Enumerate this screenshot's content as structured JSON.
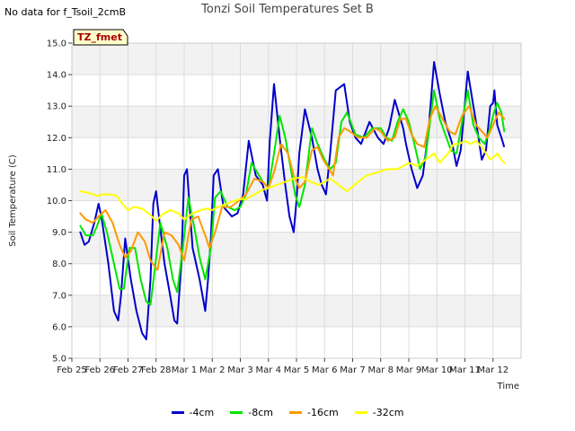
{
  "header": {
    "no_data_text": "No data for f_Tsoil_2cmB",
    "title": "Tonzi Soil Temperatures Set B"
  },
  "chart_data": {
    "type": "line",
    "title": "Tonzi Soil Temperatures Set B",
    "xlabel": "Time",
    "ylabel": "Soil Temperature (C)",
    "ylim": [
      5.0,
      15.0
    ],
    "xlim_days": [
      0,
      16
    ],
    "x_ticks": [
      "Feb 25",
      "Feb 26",
      "Feb 27",
      "Feb 28",
      "Mar 1",
      "Mar 2",
      "Mar 3",
      "Mar 4",
      "Mar 5",
      "Mar 6",
      "Mar 7",
      "Mar 8",
      "Mar 9",
      "Mar 10",
      "Mar 11",
      "Mar 12"
    ],
    "y_ticks": [
      "5.0",
      "6.0",
      "7.0",
      "8.0",
      "9.0",
      "10.0",
      "11.0",
      "12.0",
      "13.0",
      "14.0",
      "15.0"
    ],
    "annotation": "TZ_fmet",
    "grid": true,
    "legend_position": "bottom",
    "series": [
      {
        "name": "-4cm",
        "color": "#0000cc",
        "x": [
          0.3,
          0.45,
          0.6,
          0.8,
          0.95,
          1.05,
          1.3,
          1.5,
          1.65,
          1.75,
          1.9,
          2.1,
          2.3,
          2.5,
          2.65,
          2.8,
          2.9,
          3.0,
          3.1,
          3.3,
          3.5,
          3.65,
          3.75,
          3.9,
          4.0,
          4.1,
          4.3,
          4.55,
          4.75,
          4.85,
          4.95,
          5.05,
          5.2,
          5.4,
          5.7,
          5.9,
          6.0,
          6.1,
          6.3,
          6.55,
          6.8,
          6.95,
          7.05,
          7.2,
          7.4,
          7.6,
          7.75,
          7.9,
          8.0,
          8.1,
          8.3,
          8.55,
          8.75,
          8.9,
          9.05,
          9.2,
          9.4,
          9.7,
          9.9,
          10.1,
          10.3,
          10.6,
          10.9,
          11.1,
          11.3,
          11.5,
          11.8,
          11.9,
          12.1,
          12.3,
          12.5,
          12.7,
          12.9,
          13.1,
          13.3,
          13.55,
          13.7,
          13.85,
          14.1,
          14.3,
          14.45,
          14.6,
          14.75
        ],
        "y": [
          9.0,
          8.6,
          8.7,
          9.3,
          9.9,
          9.5,
          8.0,
          6.5,
          6.2,
          7.0,
          8.8,
          7.5,
          6.5,
          5.8,
          5.6,
          7.5,
          9.9,
          10.3,
          9.5,
          8.0,
          7.0,
          6.2,
          6.1,
          8.0,
          10.8,
          11.0,
          8.5,
          7.5,
          6.5,
          7.5,
          8.8,
          10.8,
          11.0,
          9.8,
          9.5,
          9.6,
          9.9,
          10.2,
          11.9,
          10.8,
          10.5,
          10.0,
          11.9,
          13.7,
          12.0,
          10.5,
          9.5,
          9.0,
          10.0,
          11.5,
          12.9,
          12.0,
          11.0,
          10.5,
          10.2,
          11.5,
          13.5,
          13.7,
          12.5,
          12.0,
          11.8,
          12.5,
          12.0,
          11.8,
          12.3,
          13.2,
          12.3,
          11.8,
          11.0,
          10.4,
          10.8,
          12.2,
          14.4,
          13.4,
          12.5,
          11.8,
          11.1,
          11.6,
          14.1,
          13.0,
          12.2,
          11.3,
          11.6
        ],
        "x2": [
          14.75,
          14.9,
          15.0,
          15.05,
          15.15,
          15.3,
          15.4
        ],
        "y2": [
          11.6,
          13.0,
          13.1,
          13.5,
          12.4,
          12.0,
          11.7
        ]
      },
      {
        "name": "-8cm",
        "color": "#00e600",
        "x": [
          0.3,
          0.5,
          0.75,
          0.9,
          1.05,
          1.25,
          1.5,
          1.7,
          1.85,
          2.05,
          2.25,
          2.45,
          2.65,
          2.8,
          2.95,
          3.15,
          3.4,
          3.6,
          3.75,
          3.95,
          4.15,
          4.35,
          4.55,
          4.75,
          4.95,
          5.1,
          5.3,
          5.55,
          5.8,
          6.0,
          6.2,
          6.4,
          6.6,
          6.8,
          7.0,
          7.2,
          7.4,
          7.6,
          7.8,
          7.95,
          8.1,
          8.3,
          8.55,
          8.75,
          9.0,
          9.2,
          9.4,
          9.6,
          9.8,
          10.1,
          10.4,
          10.7,
          11.0,
          11.2,
          11.4,
          11.6,
          11.8,
          12.0,
          12.2,
          12.4,
          12.6,
          12.9,
          13.1,
          13.3,
          13.5,
          13.7,
          13.9,
          14.1,
          14.3,
          14.5,
          14.7,
          14.9,
          15.0,
          15.15,
          15.3,
          15.4
        ],
        "y": [
          9.2,
          8.9,
          8.9,
          9.2,
          9.6,
          9.0,
          8.0,
          7.2,
          7.2,
          8.5,
          8.5,
          7.5,
          6.8,
          6.7,
          7.8,
          9.3,
          8.5,
          7.5,
          7.1,
          8.5,
          10.1,
          9.2,
          8.2,
          7.5,
          8.5,
          10.1,
          10.3,
          9.8,
          9.7,
          9.8,
          10.2,
          11.2,
          10.9,
          10.6,
          10.4,
          11.5,
          12.7,
          12.0,
          11.0,
          10.2,
          9.8,
          10.5,
          12.3,
          11.8,
          11.3,
          11.0,
          11.2,
          12.5,
          12.8,
          12.1,
          12.0,
          12.3,
          12.3,
          12.0,
          11.9,
          12.5,
          12.9,
          12.5,
          11.8,
          11.0,
          11.4,
          13.5,
          12.6,
          12.1,
          11.6,
          11.5,
          12.5,
          13.5,
          12.4,
          12.0,
          11.8,
          12.3,
          12.7,
          13.1,
          12.8,
          12.2
        ]
      },
      {
        "name": "-16cm",
        "color": "#ff9900",
        "x": [
          0.3,
          0.5,
          0.75,
          0.95,
          1.2,
          1.45,
          1.7,
          1.9,
          2.1,
          2.35,
          2.6,
          2.8,
          3.05,
          3.3,
          3.55,
          3.8,
          4.0,
          4.25,
          4.5,
          4.75,
          4.9,
          5.1,
          5.35,
          5.65,
          5.95,
          6.2,
          6.5,
          6.8,
          7.0,
          7.2,
          7.45,
          7.7,
          7.9,
          8.1,
          8.3,
          8.55,
          8.75,
          8.95,
          9.1,
          9.3,
          9.5,
          9.7,
          9.9,
          10.2,
          10.5,
          10.8,
          11.0,
          11.25,
          11.5,
          11.7,
          11.9,
          12.1,
          12.3,
          12.55,
          12.75,
          12.95,
          13.2,
          13.45,
          13.65,
          13.9,
          14.15,
          14.4,
          14.6,
          14.8,
          15.0,
          15.2,
          15.4
        ],
        "y": [
          9.6,
          9.4,
          9.3,
          9.5,
          9.7,
          9.3,
          8.6,
          8.2,
          8.4,
          9.0,
          8.7,
          8.1,
          7.8,
          9.0,
          8.9,
          8.6,
          8.1,
          9.4,
          9.5,
          8.9,
          8.5,
          9.0,
          9.8,
          9.8,
          10.0,
          10.2,
          10.7,
          10.6,
          10.4,
          10.9,
          11.8,
          11.5,
          10.8,
          10.4,
          10.6,
          11.6,
          11.7,
          11.3,
          11.1,
          10.8,
          12.0,
          12.3,
          12.2,
          12.0,
          12.0,
          12.3,
          12.2,
          11.9,
          12.0,
          12.6,
          12.6,
          12.1,
          11.8,
          11.7,
          12.6,
          13.0,
          12.6,
          12.2,
          12.1,
          12.7,
          13.0,
          12.4,
          12.2,
          12.0,
          12.4,
          12.8,
          12.6
        ]
      },
      {
        "name": "-32cm",
        "color": "#ffff00",
        "x": [
          0.3,
          0.6,
          0.9,
          1.1,
          1.35,
          1.6,
          1.8,
          2.0,
          2.2,
          2.5,
          2.8,
          3.0,
          3.2,
          3.5,
          3.8,
          4.0,
          4.3,
          4.6,
          4.8,
          5.0,
          5.2,
          5.5,
          5.8,
          6.0,
          6.2,
          6.5,
          6.8,
          7.0,
          7.3,
          7.6,
          7.9,
          8.2,
          8.5,
          8.8,
          9.0,
          9.2,
          9.5,
          9.8,
          10.2,
          10.5,
          10.9,
          11.2,
          11.6,
          12.0,
          12.3,
          12.6,
          12.9,
          13.1,
          13.4,
          13.6,
          13.8,
          14.0,
          14.2,
          14.4,
          14.6,
          14.75,
          14.9,
          15.05,
          15.15,
          15.3,
          15.4
        ],
        "y": [
          10.3,
          10.25,
          10.15,
          10.2,
          10.2,
          10.15,
          9.9,
          9.7,
          9.8,
          9.75,
          9.55,
          9.35,
          9.55,
          9.7,
          9.6,
          9.4,
          9.6,
          9.7,
          9.75,
          9.7,
          9.8,
          9.9,
          10.0,
          10.05,
          10.05,
          10.2,
          10.35,
          10.4,
          10.5,
          10.6,
          10.7,
          10.75,
          10.6,
          10.5,
          10.6,
          10.7,
          10.5,
          10.3,
          10.6,
          10.8,
          10.9,
          11.0,
          11.0,
          11.2,
          11.1,
          11.3,
          11.5,
          11.2,
          11.5,
          11.8,
          11.8,
          11.9,
          11.8,
          11.9,
          11.7,
          11.5,
          11.3,
          11.4,
          11.5,
          11.3,
          11.2
        ]
      }
    ]
  }
}
